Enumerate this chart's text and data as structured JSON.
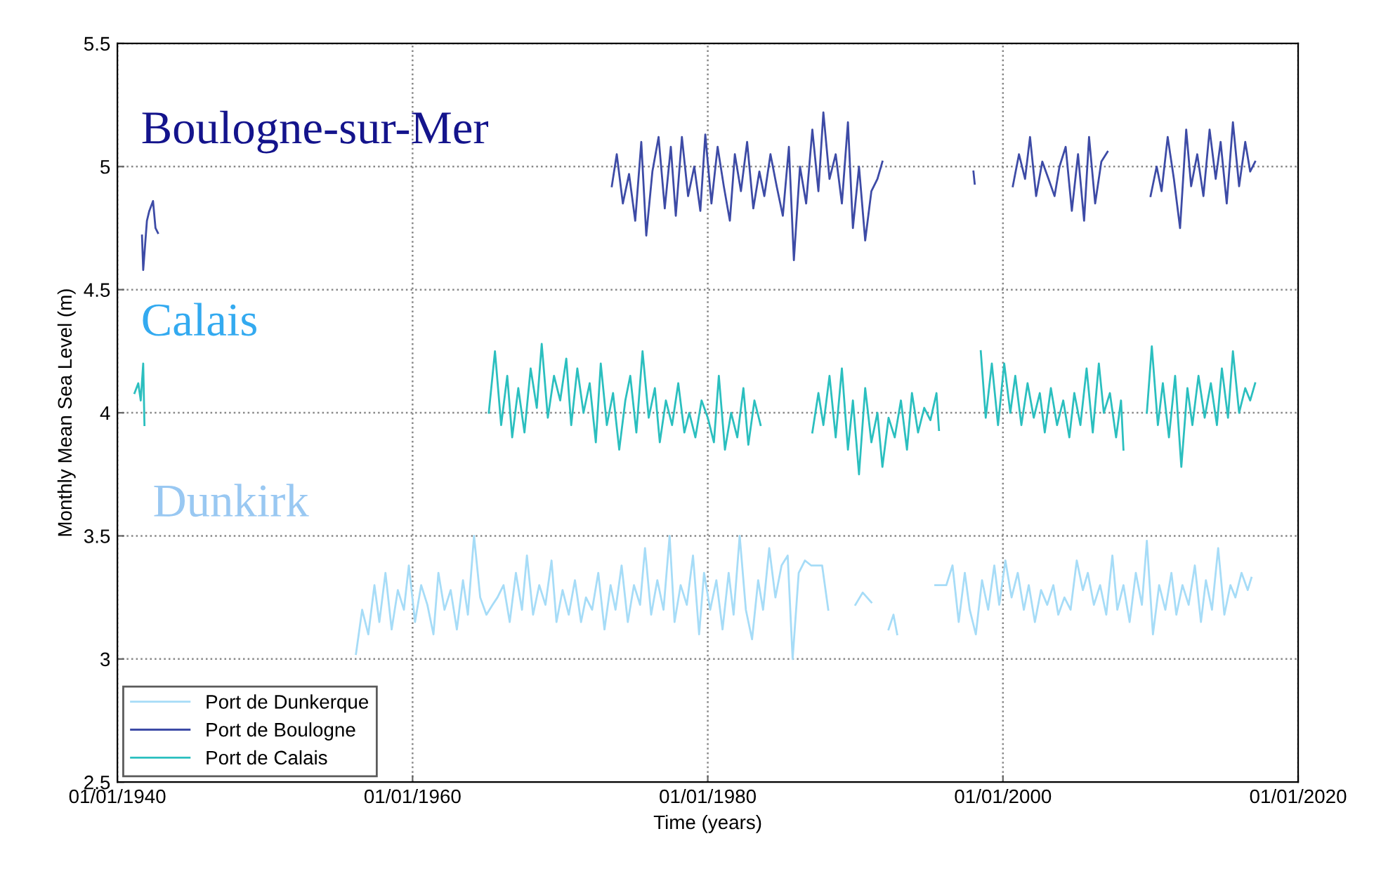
{
  "chart_data": {
    "type": "line",
    "xlabel": "Time (years)",
    "ylabel": "Monthly Mean Sea Level (m)",
    "xlim": [
      "1940-01-01",
      "2020-01-01"
    ],
    "ylim": [
      2.5,
      5.5
    ],
    "xticks": [
      {
        "value": "1940-01-01",
        "label": "01/01/1940"
      },
      {
        "value": "1960-01-01",
        "label": "01/01/1960"
      },
      {
        "value": "1980-01-01",
        "label": "01/01/1980"
      },
      {
        "value": "2000-01-01",
        "label": "01/01/2000"
      },
      {
        "value": "2020-01-01",
        "label": "01/01/2020"
      }
    ],
    "yticks": [
      2.5,
      3,
      3.5,
      4,
      4.5,
      5,
      5.5
    ],
    "grid": true,
    "legend": "bottom left",
    "line_style": "solid",
    "marker": "none",
    "annotations": [
      "Boulogne-sur-Mer",
      "Calais",
      "Dunkirk"
    ],
    "series": [
      {
        "name": "Port de Dunkerque",
        "color": "#a6dcf7",
        "x": [
          "1956-03",
          "1956-08",
          "1957-01",
          "1957-06",
          "1957-10",
          "1958-03",
          "1958-08",
          "1959-01",
          "1959-06",
          "1959-10",
          "1960-03",
          "1960-08",
          "1961-01",
          "1961-06",
          "1961-10",
          "1962-03",
          "1962-08",
          "1963-01",
          "1963-06",
          "1963-10",
          "1964-03",
          "1964-08",
          "1965-01",
          "1965-06",
          "1965-10",
          "1966-03",
          "1966-08",
          "1967-01",
          "1967-06",
          "1967-10",
          "1968-03",
          "1968-08",
          "1969-01",
          "1969-06",
          "1969-10",
          "1970-03",
          "1970-08",
          "1971-01",
          "1971-06",
          "1971-10",
          "1972-03",
          "1972-08",
          "1973-01",
          "1973-06",
          "1973-10",
          "1974-03",
          "1974-08",
          "1975-01",
          "1975-06",
          "1975-10",
          "1976-03",
          "1976-08",
          "1977-01",
          "1977-06",
          "1977-10",
          "1978-03",
          "1978-08",
          "1979-01",
          "1979-06",
          "1979-10",
          "1980-03",
          "1980-08",
          "1981-01",
          "1981-06",
          "1981-10",
          "1982-03",
          "1982-08",
          "1983-01",
          "1983-06",
          "1983-10",
          "1984-03",
          "1984-08",
          "1985-01",
          "1985-06",
          "1985-10",
          "1986-03",
          "1986-08",
          "1987-01",
          "1987-06",
          "1987-10",
          "1988-03",
          "1989-01",
          "1990-01",
          "1990-07",
          "1991-02",
          "1991-09",
          "1992-04",
          "1992-08",
          "1992-11",
          "1994-01",
          "1995-06",
          "1995-10",
          "1996-03",
          "1996-08",
          "1997-01",
          "1997-06",
          "1997-10",
          "1998-03",
          "1998-08",
          "1999-01",
          "1999-06",
          "1999-10",
          "2000-03",
          "2000-08",
          "2001-01",
          "2001-06",
          "2001-10",
          "2002-03",
          "2002-08",
          "2003-01",
          "2003-06",
          "2003-10",
          "2004-03",
          "2004-08",
          "2005-01",
          "2005-06",
          "2005-10",
          "2006-03",
          "2006-08",
          "2007-01",
          "2007-06",
          "2007-10",
          "2008-03",
          "2008-08",
          "2009-01",
          "2009-06",
          "2009-10",
          "2010-03",
          "2010-08",
          "2011-01",
          "2011-06",
          "2011-10",
          "2012-03",
          "2012-08",
          "2013-01",
          "2013-06",
          "2013-10",
          "2014-03",
          "2014-08",
          "2015-01",
          "2015-06",
          "2015-10",
          "2016-03",
          "2016-08",
          "2016-11"
        ],
        "values": [
          3.02,
          3.2,
          3.1,
          3.3,
          3.15,
          3.35,
          3.12,
          3.28,
          3.2,
          3.38,
          3.15,
          3.3,
          3.22,
          3.1,
          3.35,
          3.2,
          3.28,
          3.12,
          3.32,
          3.18,
          3.5,
          3.25,
          3.18,
          3.22,
          3.25,
          3.3,
          3.15,
          3.35,
          3.2,
          3.42,
          3.18,
          3.3,
          3.22,
          3.4,
          3.15,
          3.28,
          3.18,
          3.32,
          3.15,
          3.25,
          3.2,
          3.35,
          3.12,
          3.3,
          3.2,
          3.38,
          3.15,
          3.3,
          3.22,
          3.45,
          3.18,
          3.32,
          3.2,
          3.5,
          3.15,
          3.3,
          3.22,
          3.42,
          3.1,
          3.35,
          3.2,
          3.32,
          3.12,
          3.35,
          3.18,
          3.5,
          3.2,
          3.08,
          3.32,
          3.2,
          3.45,
          3.25,
          3.38,
          3.42,
          3.0,
          3.35,
          3.4,
          3.38,
          3.38,
          3.38,
          3.2,
          null,
          3.22,
          3.27,
          3.23,
          null,
          3.12,
          3.18,
          3.1,
          null,
          3.3,
          3.3,
          3.3,
          3.38,
          3.15,
          3.35,
          3.2,
          3.1,
          3.32,
          3.2,
          3.38,
          3.22,
          3.4,
          3.25,
          3.35,
          3.2,
          3.3,
          3.15,
          3.28,
          3.22,
          3.3,
          3.18,
          3.25,
          3.2,
          3.4,
          3.28,
          3.35,
          3.22,
          3.3,
          3.18,
          3.42,
          3.2,
          3.3,
          3.15,
          3.35,
          3.22,
          3.48,
          3.1,
          3.3,
          3.2,
          3.35,
          3.18,
          3.3,
          3.22,
          3.38,
          3.15,
          3.32,
          3.2,
          3.45,
          3.18,
          3.3,
          3.25,
          3.35,
          3.28,
          3.33
        ]
      },
      {
        "name": "Port de Boulogne",
        "color": "#3d4ba6",
        "x": [
          "1941-09",
          "1941-10",
          "1942-01",
          "1942-03",
          "1942-06",
          "1942-08",
          "1942-10",
          "1958-01",
          "1973-07",
          "1973-11",
          "1974-04",
          "1974-09",
          "1975-02",
          "1975-07",
          "1975-11",
          "1976-04",
          "1976-09",
          "1977-02",
          "1977-07",
          "1977-11",
          "1978-04",
          "1978-09",
          "1979-02",
          "1979-07",
          "1979-11",
          "1980-04",
          "1980-09",
          "1981-02",
          "1981-07",
          "1981-11",
          "1982-04",
          "1982-09",
          "1983-02",
          "1983-07",
          "1983-11",
          "1984-04",
          "1984-09",
          "1985-02",
          "1985-07",
          "1985-11",
          "1986-04",
          "1986-09",
          "1987-02",
          "1987-07",
          "1987-11",
          "1988-04",
          "1988-09",
          "1989-02",
          "1989-07",
          "1989-11",
          "1990-04",
          "1990-09",
          "1991-02",
          "1991-07",
          "1991-11",
          "1995-01",
          "1998-01",
          "1998-02",
          "1999-06",
          "2000-09",
          "2001-02",
          "2001-07",
          "2001-11",
          "2002-04",
          "2002-09",
          "2003-02",
          "2003-07",
          "2003-11",
          "2004-04",
          "2004-09",
          "2005-02",
          "2005-07",
          "2005-11",
          "2006-04",
          "2006-09",
          "2007-02",
          "2008-07",
          "2010-01",
          "2010-06",
          "2010-10",
          "2011-03",
          "2011-08",
          "2012-01",
          "2012-06",
          "2012-10",
          "2013-03",
          "2013-08",
          "2014-01",
          "2014-06",
          "2014-10",
          "2015-03",
          "2015-08",
          "2016-01",
          "2016-06",
          "2016-10",
          "2017-02"
        ],
        "values": [
          4.72,
          4.58,
          4.78,
          4.82,
          4.86,
          4.75,
          4.73,
          null,
          4.92,
          5.05,
          4.85,
          4.97,
          4.78,
          5.1,
          4.72,
          4.98,
          5.12,
          4.83,
          5.08,
          4.8,
          5.12,
          4.88,
          5.0,
          4.82,
          5.13,
          4.85,
          5.08,
          4.92,
          4.78,
          5.05,
          4.9,
          5.1,
          4.83,
          4.98,
          4.88,
          5.05,
          4.92,
          4.8,
          5.08,
          4.62,
          5.0,
          4.85,
          5.15,
          4.9,
          5.22,
          4.95,
          5.05,
          4.85,
          5.18,
          4.75,
          5.0,
          4.7,
          4.9,
          4.95,
          5.02,
          null,
          4.98,
          4.93,
          null,
          4.92,
          5.05,
          4.95,
          5.12,
          4.88,
          5.02,
          4.95,
          4.88,
          5.0,
          5.08,
          4.82,
          5.05,
          4.78,
          5.12,
          4.85,
          5.02,
          5.06,
          null,
          4.88,
          5.0,
          4.9,
          5.12,
          4.95,
          4.75,
          5.15,
          4.92,
          5.05,
          4.88,
          5.15,
          4.95,
          5.1,
          4.85,
          5.18,
          4.92,
          5.1,
          4.98,
          5.02
        ]
      },
      {
        "name": "Port de Calais",
        "color": "#2bbfbf",
        "x": [
          "1941-03",
          "1941-06",
          "1941-08",
          "1941-10",
          "1941-11",
          "1953-01",
          "1965-03",
          "1965-08",
          "1966-01",
          "1966-06",
          "1966-10",
          "1967-03",
          "1967-08",
          "1968-01",
          "1968-06",
          "1968-10",
          "1969-03",
          "1969-08",
          "1970-01",
          "1970-06",
          "1970-10",
          "1971-03",
          "1971-08",
          "1972-01",
          "1972-06",
          "1972-10",
          "1973-03",
          "1973-08",
          "1974-01",
          "1974-06",
          "1974-10",
          "1975-03",
          "1975-08",
          "1976-01",
          "1976-06",
          "1976-10",
          "1977-03",
          "1977-08",
          "1978-01",
          "1978-06",
          "1978-10",
          "1979-03",
          "1979-08",
          "1980-01",
          "1980-06",
          "1980-10",
          "1981-03",
          "1981-08",
          "1982-01",
          "1982-06",
          "1982-10",
          "1983-03",
          "1983-08",
          "1985-04",
          "1987-02",
          "1987-07",
          "1987-11",
          "1988-04",
          "1988-09",
          "1989-02",
          "1989-07",
          "1989-11",
          "1990-04",
          "1990-09",
          "1991-02",
          "1991-07",
          "1991-11",
          "1992-04",
          "1992-09",
          "1993-02",
          "1993-07",
          "1993-11",
          "1994-04",
          "1994-09",
          "1995-02",
          "1995-07",
          "1995-09",
          "1997-01",
          "1998-07",
          "1998-11",
          "1999-04",
          "1999-09",
          "2000-02",
          "2000-07",
          "2000-11",
          "2001-04",
          "2001-09",
          "2002-02",
          "2002-07",
          "2002-11",
          "2003-04",
          "2003-09",
          "2004-02",
          "2004-07",
          "2004-11",
          "2005-04",
          "2005-09",
          "2006-02",
          "2006-07",
          "2006-11",
          "2007-04",
          "2007-09",
          "2008-01",
          "2008-03",
          "2009-01",
          "2009-10",
          "2010-02",
          "2010-07",
          "2010-11",
          "2011-04",
          "2011-09",
          "2012-02",
          "2012-07",
          "2012-11",
          "2013-04",
          "2013-09",
          "2014-02",
          "2014-07",
          "2014-11",
          "2015-04",
          "2015-08",
          "2016-01",
          "2016-06",
          "2016-10",
          "2017-02"
        ],
        "values": [
          4.08,
          4.12,
          4.05,
          4.2,
          3.95,
          null,
          4.0,
          4.25,
          3.95,
          4.15,
          3.9,
          4.1,
          3.92,
          4.18,
          4.02,
          4.28,
          3.98,
          4.15,
          4.05,
          4.22,
          3.95,
          4.18,
          4.0,
          4.12,
          3.88,
          4.2,
          3.95,
          4.08,
          3.85,
          4.05,
          4.15,
          3.92,
          4.25,
          3.98,
          4.1,
          3.88,
          4.05,
          3.95,
          4.12,
          3.92,
          4.0,
          3.9,
          4.05,
          3.98,
          3.88,
          4.15,
          3.85,
          4.0,
          3.9,
          4.1,
          3.87,
          4.05,
          3.95,
          null,
          3.92,
          4.08,
          3.95,
          4.15,
          3.9,
          4.18,
          3.85,
          4.05,
          3.75,
          4.1,
          3.88,
          4.0,
          3.78,
          3.98,
          3.9,
          4.05,
          3.85,
          4.08,
          3.92,
          4.02,
          3.97,
          4.08,
          3.93,
          null,
          4.25,
          3.98,
          4.2,
          3.95,
          4.2,
          4.0,
          4.15,
          3.95,
          4.12,
          3.98,
          4.08,
          3.92,
          4.1,
          3.95,
          4.05,
          3.9,
          4.08,
          3.95,
          4.18,
          3.92,
          4.2,
          4.0,
          4.08,
          3.9,
          4.05,
          3.85,
          null,
          4.0,
          4.27,
          3.95,
          4.12,
          3.9,
          4.15,
          3.78,
          4.1,
          3.95,
          4.15,
          3.98,
          4.12,
          3.95,
          4.18,
          3.98,
          4.25,
          4.0,
          4.1,
          4.05,
          4.12
        ]
      }
    ]
  }
}
